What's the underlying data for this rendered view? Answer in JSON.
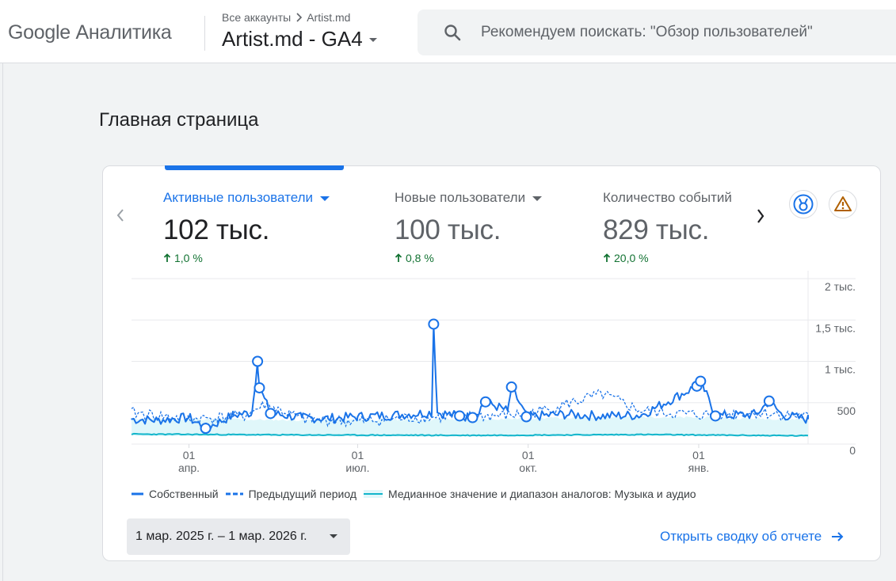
{
  "app": {
    "brand": "Google Аналитика"
  },
  "breadcrumb": {
    "root": "Все аккаунты",
    "account": "Artist.md"
  },
  "property": {
    "name": "Artist.md - GA4"
  },
  "search": {
    "placeholder": "Рекомендуем поискать: \"Обзор пользователей\""
  },
  "page": {
    "title": "Главная страница"
  },
  "metrics": [
    {
      "label": "Активные пользователи",
      "value": "102 тыс.",
      "change": "1,0 %",
      "active": true,
      "has_dropdown": true
    },
    {
      "label": "Новые пользователи",
      "value": "100 тыс.",
      "change": "0,8 %",
      "active": false,
      "has_dropdown": true
    },
    {
      "label": "Количество событий",
      "value": "829 тыс.",
      "change": "20,0 %",
      "active": false,
      "has_dropdown": false
    }
  ],
  "toolbar_icons": [
    "medal-icon",
    "warning-icon"
  ],
  "legend": {
    "own": "Собственный",
    "previous": "Предыдущий период",
    "benchmark": "Медианное значение и диапазон аналогов: Музыка и аудио"
  },
  "date_range": {
    "label": "1 мар. 2025 г. – 1 мар. 2026 г."
  },
  "report_link": {
    "label": "Открыть сводку об отчете"
  },
  "colors": {
    "accent": "#1a73e8",
    "positive": "#137333",
    "benchmark": "#12b5cb",
    "benchmark_fill": "#e0f7fa",
    "warning": "#b06000"
  },
  "chart_data": {
    "type": "line",
    "title": "",
    "x_range": [
      "2025-03-01",
      "2026-03-01"
    ],
    "x_ticks": [
      {
        "day": "01",
        "month": "апр.",
        "date": "2025-04-01"
      },
      {
        "day": "01",
        "month": "июл.",
        "date": "2025-07-01"
      },
      {
        "day": "01",
        "month": "окт.",
        "date": "2025-10-01"
      },
      {
        "day": "01",
        "month": "янв.",
        "date": "2026-01-01"
      }
    ],
    "y_ticks": [
      {
        "value": 0,
        "label": "0"
      },
      {
        "value": 500,
        "label": "500"
      },
      {
        "value": 1000,
        "label": "1 тыс."
      },
      {
        "value": 1500,
        "label": "1,5 тыс."
      },
      {
        "value": 2000,
        "label": "2 тыс."
      }
    ],
    "ylim": [
      0,
      2000
    ],
    "grid": true,
    "legend_position": "bottom",
    "series": [
      {
        "name": "Собственный",
        "style": "solid",
        "points": [
          {
            "x": "2025-03-01",
            "y": 300
          },
          {
            "x": "2025-03-15",
            "y": 290
          },
          {
            "x": "2025-04-01",
            "y": 320
          },
          {
            "x": "2025-04-10",
            "y": 190
          },
          {
            "x": "2025-04-25",
            "y": 350
          },
          {
            "x": "2025-05-05",
            "y": 380
          },
          {
            "x": "2025-05-08",
            "y": 1000
          },
          {
            "x": "2025-05-09",
            "y": 680
          },
          {
            "x": "2025-05-15",
            "y": 370
          },
          {
            "x": "2025-06-01",
            "y": 320
          },
          {
            "x": "2025-06-15",
            "y": 310
          },
          {
            "x": "2025-07-01",
            "y": 330
          },
          {
            "x": "2025-07-20",
            "y": 350
          },
          {
            "x": "2025-08-10",
            "y": 380
          },
          {
            "x": "2025-08-11",
            "y": 1450
          },
          {
            "x": "2025-08-13",
            "y": 380
          },
          {
            "x": "2025-08-25",
            "y": 340
          },
          {
            "x": "2025-09-01",
            "y": 320
          },
          {
            "x": "2025-09-08",
            "y": 510
          },
          {
            "x": "2025-09-20",
            "y": 400
          },
          {
            "x": "2025-09-22",
            "y": 690
          },
          {
            "x": "2025-09-30",
            "y": 330
          },
          {
            "x": "2025-10-20",
            "y": 360
          },
          {
            "x": "2025-11-10",
            "y": 340
          },
          {
            "x": "2025-12-01",
            "y": 350
          },
          {
            "x": "2025-12-31",
            "y": 700
          },
          {
            "x": "2026-01-02",
            "y": 760
          },
          {
            "x": "2026-01-10",
            "y": 340
          },
          {
            "x": "2026-02-01",
            "y": 360
          },
          {
            "x": "2026-02-08",
            "y": 520
          },
          {
            "x": "2026-02-15",
            "y": 350
          },
          {
            "x": "2026-03-01",
            "y": 300
          }
        ],
        "anomalies": [
          {
            "x": "2025-04-10",
            "y": 190
          },
          {
            "x": "2025-05-08",
            "y": 1000
          },
          {
            "x": "2025-05-09",
            "y": 680
          },
          {
            "x": "2025-05-15",
            "y": 370
          },
          {
            "x": "2025-08-11",
            "y": 1450
          },
          {
            "x": "2025-08-25",
            "y": 340
          },
          {
            "x": "2025-09-01",
            "y": 320
          },
          {
            "x": "2025-09-08",
            "y": 510
          },
          {
            "x": "2025-09-22",
            "y": 690
          },
          {
            "x": "2025-09-30",
            "y": 330
          },
          {
            "x": "2025-12-31",
            "y": 700
          },
          {
            "x": "2026-01-02",
            "y": 760
          },
          {
            "x": "2026-01-10",
            "y": 340
          },
          {
            "x": "2026-02-08",
            "y": 520
          }
        ]
      },
      {
        "name": "Предыдущий период",
        "style": "dashed",
        "points": [
          {
            "x": "2025-03-01",
            "y": 380
          },
          {
            "x": "2025-04-01",
            "y": 300
          },
          {
            "x": "2025-05-01",
            "y": 340
          },
          {
            "x": "2025-05-12",
            "y": 480
          },
          {
            "x": "2025-06-01",
            "y": 300
          },
          {
            "x": "2025-07-01",
            "y": 270
          },
          {
            "x": "2025-08-01",
            "y": 320
          },
          {
            "x": "2025-09-01",
            "y": 330
          },
          {
            "x": "2025-10-01",
            "y": 360
          },
          {
            "x": "2025-11-10",
            "y": 600
          },
          {
            "x": "2025-12-01",
            "y": 400
          },
          {
            "x": "2026-01-01",
            "y": 350
          },
          {
            "x": "2026-02-01",
            "y": 380
          },
          {
            "x": "2026-03-01",
            "y": 330
          }
        ]
      },
      {
        "name": "Медианное значение и диапазон аналогов: Музыка и аудио",
        "style": "band",
        "median": [
          {
            "x": "2025-03-01",
            "y": 120
          },
          {
            "x": "2025-06-01",
            "y": 110
          },
          {
            "x": "2025-09-01",
            "y": 105
          },
          {
            "x": "2025-12-01",
            "y": 115
          },
          {
            "x": "2026-03-01",
            "y": 100
          }
        ],
        "upper": [
          {
            "x": "2025-03-01",
            "y": 310
          },
          {
            "x": "2025-06-01",
            "y": 290
          },
          {
            "x": "2025-09-01",
            "y": 300
          },
          {
            "x": "2025-12-01",
            "y": 330
          },
          {
            "x": "2026-03-01",
            "y": 300
          }
        ],
        "lower": [
          {
            "x": "2025-03-01",
            "y": 100
          },
          {
            "x": "2025-06-01",
            "y": 95
          },
          {
            "x": "2025-09-01",
            "y": 90
          },
          {
            "x": "2025-12-01",
            "y": 100
          },
          {
            "x": "2026-03-01",
            "y": 90
          }
        ]
      }
    ]
  }
}
